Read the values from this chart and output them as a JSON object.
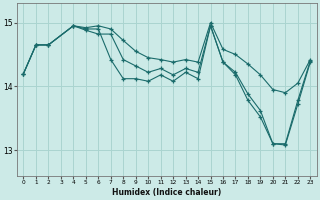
{
  "xlabel": "Humidex (Indice chaleur)",
  "bg_color": "#cceae7",
  "grid_color": "#aad4d0",
  "line_color": "#1a6b6b",
  "xlim": [
    -0.5,
    23.5
  ],
  "ylim": [
    12.6,
    15.3
  ],
  "yticks": [
    13,
    14,
    15
  ],
  "xticks": [
    0,
    1,
    2,
    3,
    4,
    5,
    6,
    7,
    8,
    9,
    10,
    11,
    12,
    13,
    14,
    15,
    16,
    17,
    18,
    19,
    20,
    21,
    22,
    23
  ],
  "series": [
    [
      14.2,
      14.65,
      14.65,
      null,
      14.95,
      14.92,
      14.95,
      14.9,
      14.72,
      14.55,
      14.45,
      14.42,
      14.38,
      14.42,
      14.38,
      15.0,
      14.58,
      14.5,
      14.35,
      14.18,
      13.95,
      13.9,
      14.05,
      14.42
    ],
    [
      14.2,
      14.65,
      14.65,
      null,
      14.95,
      14.88,
      14.82,
      14.82,
      14.42,
      14.32,
      14.22,
      14.28,
      14.18,
      14.28,
      14.22,
      14.95,
      14.38,
      14.22,
      13.88,
      13.62,
      13.1,
      13.1,
      13.78,
      14.4
    ],
    [
      14.2,
      14.65,
      14.65,
      null,
      14.95,
      14.9,
      14.9,
      14.42,
      14.12,
      14.12,
      14.08,
      14.18,
      14.08,
      14.22,
      14.12,
      14.95,
      14.38,
      14.18,
      13.78,
      13.52,
      13.1,
      13.08,
      13.72,
      14.38
    ]
  ]
}
